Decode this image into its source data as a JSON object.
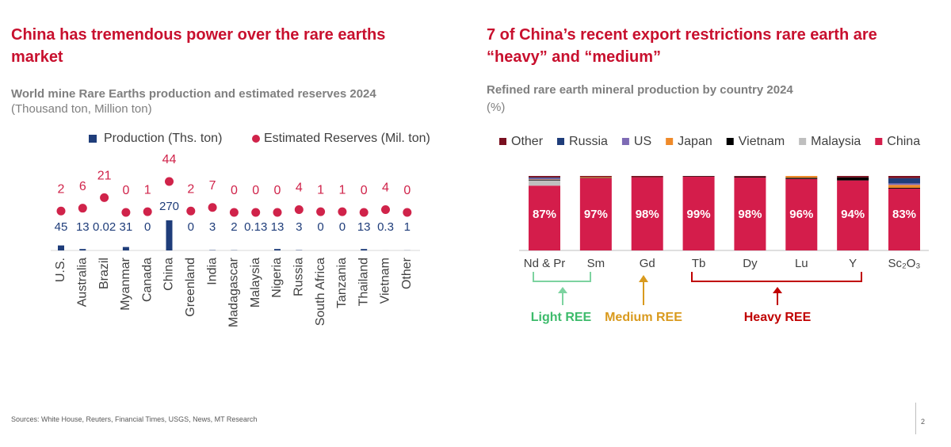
{
  "chart_data": [
    {
      "type": "bar-dot",
      "heading": "China has tremendous power over the rare earths market",
      "title": "World mine Rare Earths production and estimated reserves 2024",
      "subtitle": "(Thousand ton, Million ton)",
      "categories": [
        "U.S.",
        "Australia",
        "Brazil",
        "Myanmar",
        "Canada",
        "China",
        "Greenland",
        "India",
        "Madagascar",
        "Malaysia",
        "Nigeria",
        "Russia",
        "South Africa",
        "Tanzania",
        "Thailand",
        "Vietnam",
        "Other"
      ],
      "series": [
        {
          "name": "Production (Ths. ton)",
          "color": "#1f3d7a",
          "values": [
            45,
            13,
            0.02,
            31,
            0,
            270,
            0,
            3,
            2,
            0.13,
            13,
            3,
            0,
            0,
            13,
            0.3,
            1
          ]
        },
        {
          "name": "Estimated Reserves (Mil. ton)",
          "color": "#d0234a",
          "values": [
            2,
            6,
            21,
            0,
            1,
            44,
            2,
            7,
            0,
            0,
            0,
            4,
            1,
            1,
            0,
            4,
            0
          ]
        }
      ]
    },
    {
      "type": "stacked-bar",
      "heading": "7 of China’s  recent export restrictions rare earth are “heavy” and “medium”",
      "title": "Refined rare earth mineral production by country 2024",
      "subtitle": "(%)",
      "categories": [
        "Nd & Pr",
        "Sm",
        "Gd",
        "Tb",
        "Dy",
        "Lu",
        "Y",
        "Sc₂O₃"
      ],
      "series": [
        {
          "name": "China",
          "color": "#d41d4b",
          "values": [
            87,
            97,
            98,
            99,
            98,
            96,
            94,
            83
          ],
          "value_labels": [
            "87%",
            "97%",
            "98%",
            "99%",
            "98%",
            "96%",
            "94%",
            "83%"
          ]
        },
        {
          "name": "Malaysia",
          "color": "#bfbfbf",
          "values": [
            7,
            0,
            0,
            0,
            0,
            0,
            0,
            0
          ]
        },
        {
          "name": "Vietnam",
          "color": "#000000",
          "values": [
            1,
            0.5,
            0,
            0.5,
            1,
            1.5,
            4,
            1
          ]
        },
        {
          "name": "Japan",
          "color": "#ef8a2a",
          "values": [
            0.5,
            1,
            0,
            0,
            0,
            2.5,
            0,
            4
          ]
        },
        {
          "name": "US",
          "color": "#7e6bb5",
          "values": [
            1.5,
            0,
            0,
            0,
            0,
            0,
            0,
            2
          ]
        },
        {
          "name": "Russia",
          "color": "#1f3d7a",
          "values": [
            1,
            0,
            0,
            0,
            0,
            0,
            0,
            7
          ]
        },
        {
          "name": "Other",
          "color": "#7a1020",
          "values": [
            2,
            1.5,
            2,
            0.5,
            1,
            0,
            2,
            3
          ]
        }
      ],
      "legend_order": [
        "Other",
        "Russia",
        "US",
        "Japan",
        "Vietnam",
        "Malaysia",
        "China"
      ],
      "annotations": [
        {
          "text": "Light REE",
          "color": "#3dbb6b"
        },
        {
          "text": "Medium REE",
          "color": "#d99a1e"
        },
        {
          "text": "Heavy REE",
          "color": "#c00000"
        }
      ]
    }
  ],
  "footer": {
    "sources": "Sources: White House, Reuters, Financial Times, USGS, News, MT Research",
    "page": 2
  }
}
